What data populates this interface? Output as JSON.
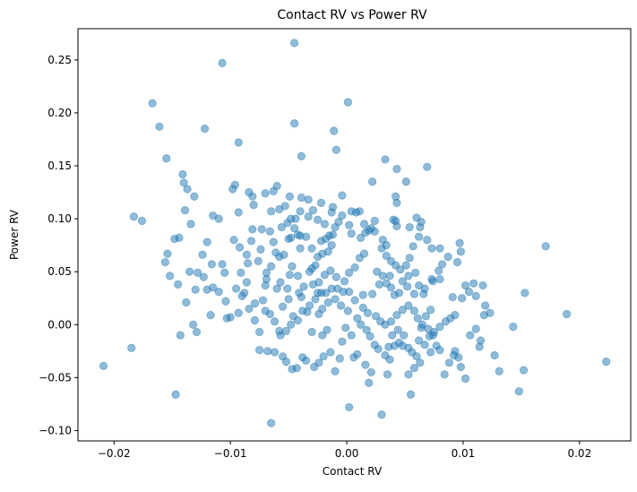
{
  "chart_data": {
    "type": "scatter",
    "title": "Contact RV vs Power RV",
    "xlabel": "Contact RV",
    "ylabel": "Power RV",
    "xlim": [
      -0.0231,
      0.0244
    ],
    "ylim": [
      -0.1098,
      0.2795
    ],
    "xticks": [
      -0.02,
      -0.01,
      0.0,
      0.01,
      0.02
    ],
    "xtick_labels": [
      "−0.02",
      "−0.01",
      "0.00",
      "0.01",
      "0.02"
    ],
    "yticks": [
      -0.1,
      -0.05,
      0.0,
      0.05,
      0.1,
      0.15,
      0.2,
      0.25
    ],
    "ytick_labels": [
      "−0.10",
      "−0.05",
      "0.00",
      "0.05",
      "0.10",
      "0.15",
      "0.20",
      "0.25"
    ],
    "grid": false,
    "legend": false,
    "marker_color": "#1f77b4",
    "marker_alpha": 0.5,
    "points": [
      [
        -0.0045,
        0.266
      ],
      [
        -0.0107,
        0.247
      ],
      [
        0.0001,
        0.21
      ],
      [
        -0.0167,
        0.209
      ],
      [
        -0.0161,
        0.187
      ],
      [
        -0.0045,
        0.19
      ],
      [
        -0.0122,
        0.185
      ],
      [
        -0.0011,
        0.183
      ],
      [
        -0.0009,
        0.165
      ],
      [
        -0.0093,
        0.172
      ],
      [
        -0.0155,
        0.157
      ],
      [
        -0.0039,
        0.159
      ],
      [
        0.0033,
        0.156
      ],
      [
        0.0069,
        0.149
      ],
      [
        0.0043,
        0.147
      ],
      [
        -0.0141,
        0.142
      ],
      [
        -0.014,
        0.134
      ],
      [
        -0.0137,
        0.128
      ],
      [
        -0.0131,
        0.121
      ],
      [
        -0.0096,
        0.132
      ],
      [
        -0.0098,
        0.128
      ],
      [
        -0.0084,
        0.125
      ],
      [
        -0.0081,
        0.121
      ],
      [
        -0.006,
        0.131
      ],
      [
        -0.0063,
        0.126
      ],
      [
        -0.007,
        0.124
      ],
      [
        0.0022,
        0.135
      ],
      [
        0.0051,
        0.135
      ],
      [
        0.0042,
        0.121
      ],
      [
        -0.0049,
        0.121
      ],
      [
        -0.0039,
        0.12
      ],
      [
        -0.0033,
        0.118
      ],
      [
        -0.0004,
        0.122
      ],
      [
        0.0043,
        0.115
      ],
      [
        -0.0022,
        0.115
      ],
      [
        -0.0012,
        0.111
      ],
      [
        0.0004,
        0.107
      ],
      [
        0.0011,
        0.107
      ],
      [
        -0.008,
        0.113
      ],
      [
        -0.0065,
        0.107
      ],
      [
        -0.0053,
        0.112
      ],
      [
        -0.0058,
        0.109
      ],
      [
        -0.0093,
        0.106
      ],
      [
        -0.011,
        0.1
      ],
      [
        -0.0115,
        0.103
      ],
      [
        -0.0139,
        0.108
      ],
      [
        -0.0134,
        0.095
      ],
      [
        -0.0183,
        0.102
      ],
      [
        -0.0176,
        0.098
      ],
      [
        -0.0148,
        0.081
      ],
      [
        -0.0144,
        0.082
      ],
      [
        -0.0154,
        0.067
      ],
      [
        -0.0156,
        0.059
      ],
      [
        -0.0152,
        0.046
      ],
      [
        -0.0145,
        0.038
      ],
      [
        -0.0138,
        0.021
      ],
      [
        -0.013,
        0.033
      ],
      [
        -0.0135,
        0.05
      ],
      [
        -0.0128,
        0.049
      ],
      [
        -0.012,
        0.033
      ],
      [
        -0.0115,
        0.035
      ],
      [
        -0.0105,
        0.049
      ],
      [
        -0.0107,
        0.057
      ],
      [
        -0.0095,
        0.034
      ],
      [
        -0.009,
        0.027
      ],
      [
        -0.0088,
        0.03
      ],
      [
        -0.0086,
        0.04
      ],
      [
        -0.0091,
        0.049
      ],
      [
        -0.0085,
        0.058
      ],
      [
        -0.0086,
        0.066
      ],
      [
        -0.0082,
        0.079
      ],
      [
        -0.0081,
        0.09
      ],
      [
        -0.0073,
        0.09
      ],
      [
        -0.0074,
        0.071
      ],
      [
        -0.0076,
        0.06
      ],
      [
        -0.0069,
        0.049
      ],
      [
        -0.007,
        0.037
      ],
      [
        -0.0072,
        0.023
      ],
      [
        -0.006,
        0.034
      ],
      [
        -0.0057,
        0.04
      ],
      [
        -0.0058,
        0.064
      ],
      [
        -0.0063,
        0.078
      ],
      [
        -0.0066,
        0.088
      ],
      [
        -0.0056,
        0.092
      ],
      [
        -0.005,
        0.081
      ],
      [
        -0.0048,
        0.082
      ],
      [
        -0.0045,
        0.091
      ],
      [
        -0.0044,
        0.1
      ],
      [
        -0.0048,
        0.1
      ],
      [
        -0.0051,
        0.096
      ],
      [
        -0.0054,
        0.066
      ],
      [
        -0.0047,
        0.055
      ],
      [
        -0.0049,
        0.047
      ],
      [
        -0.0042,
        0.046
      ],
      [
        -0.0041,
        0.03
      ],
      [
        -0.0039,
        0.026
      ],
      [
        -0.0037,
        0.036
      ],
      [
        -0.0032,
        0.05
      ],
      [
        -0.003,
        0.053
      ],
      [
        -0.0027,
        0.056
      ],
      [
        -0.0025,
        0.064
      ],
      [
        -0.0021,
        0.067
      ],
      [
        -0.0022,
        0.079
      ],
      [
        -0.0018,
        0.081
      ],
      [
        -0.0015,
        0.084
      ],
      [
        -0.0012,
        0.085
      ],
      [
        -0.001,
        0.092
      ],
      [
        -0.0007,
        0.097
      ],
      [
        -0.0004,
        0.103
      ],
      [
        0.0002,
        0.094
      ],
      [
        0.0004,
        0.086
      ],
      [
        0.0012,
        0.082
      ],
      [
        0.0016,
        0.087
      ],
      [
        0.0019,
        0.089
      ],
      [
        0.0024,
        0.098
      ],
      [
        0.0024,
        0.088
      ],
      [
        0.003,
        0.072
      ],
      [
        0.0034,
        0.065
      ],
      [
        0.0038,
        0.06
      ],
      [
        0.0042,
        0.056
      ],
      [
        0.0046,
        0.052
      ],
      [
        0.0051,
        0.056
      ],
      [
        0.0054,
        0.063
      ],
      [
        0.0057,
        0.074
      ],
      [
        0.0062,
        0.083
      ],
      [
        0.0063,
        0.092
      ],
      [
        0.006,
        0.101
      ],
      [
        0.0064,
        0.097
      ],
      [
        0.0054,
        0.092
      ],
      [
        0.0043,
        0.093
      ],
      [
        0.0042,
        0.098
      ],
      [
        0.004,
        0.099
      ],
      [
        0.0069,
        0.08
      ],
      [
        0.0073,
        0.072
      ],
      [
        0.008,
        0.072
      ],
      [
        0.0087,
        0.064
      ],
      [
        0.0095,
        0.059
      ],
      [
        0.0097,
        0.077
      ],
      [
        0.0098,
        0.069
      ],
      [
        0.0082,
        0.057
      ],
      [
        0.0079,
        0.051
      ],
      [
        0.008,
        0.043
      ],
      [
        0.0073,
        0.043
      ],
      [
        0.0074,
        0.041
      ],
      [
        0.0067,
        0.034
      ],
      [
        0.0062,
        0.037
      ],
      [
        0.0066,
        0.029
      ],
      [
        0.0058,
        0.029
      ],
      [
        0.0052,
        0.036
      ],
      [
        0.0045,
        0.03
      ],
      [
        0.0041,
        0.028
      ],
      [
        0.0038,
        0.035
      ],
      [
        0.0034,
        0.039
      ],
      [
        0.0028,
        0.038
      ],
      [
        0.0022,
        0.029
      ],
      [
        0.0014,
        0.028
      ],
      [
        0.0007,
        0.023
      ],
      [
        0.0002,
        0.031
      ],
      [
        -0.0003,
        0.031
      ],
      [
        -0.0008,
        0.034
      ],
      [
        -0.0013,
        0.034
      ],
      [
        -0.0018,
        0.03
      ],
      [
        -0.0022,
        0.03
      ],
      [
        -0.0027,
        0.024
      ],
      [
        -0.0032,
        0.018
      ],
      [
        -0.0034,
        0.012
      ],
      [
        -0.0038,
        0.013
      ],
      [
        -0.0042,
        0.004
      ],
      [
        -0.0048,
        0.0
      ],
      [
        -0.0052,
        -0.006
      ],
      [
        -0.0058,
        -0.006
      ],
      [
        -0.0062,
        0.003
      ],
      [
        -0.0066,
        0.01
      ],
      [
        -0.007,
        0.013
      ],
      [
        -0.0075,
        -0.024
      ],
      [
        -0.0068,
        -0.025
      ],
      [
        -0.0062,
        -0.026
      ],
      [
        -0.0055,
        -0.03
      ],
      [
        -0.0052,
        -0.035
      ],
      [
        -0.0047,
        -0.042
      ],
      [
        -0.0043,
        -0.041
      ],
      [
        -0.0038,
        -0.031
      ],
      [
        -0.0035,
        -0.034
      ],
      [
        -0.0028,
        -0.04
      ],
      [
        -0.0024,
        -0.036
      ],
      [
        -0.002,
        -0.03
      ],
      [
        -0.0014,
        -0.026
      ],
      [
        -0.001,
        -0.044
      ],
      [
        -0.0004,
        -0.016
      ],
      [
        -0.0001,
        -0.003
      ],
      [
        0.0004,
        -0.01
      ],
      [
        0.0009,
        0.006
      ],
      [
        0.0012,
        0.0
      ],
      [
        0.0017,
        -0.005
      ],
      [
        0.002,
        -0.011
      ],
      [
        0.0024,
        -0.019
      ],
      [
        0.0027,
        -0.023
      ],
      [
        0.0033,
        -0.029
      ],
      [
        0.0036,
        -0.021
      ],
      [
        0.0041,
        -0.02
      ],
      [
        0.0045,
        -0.017
      ],
      [
        0.0048,
        -0.02
      ],
      [
        0.0053,
        -0.022
      ],
      [
        0.0056,
        -0.026
      ],
      [
        0.006,
        -0.03
      ],
      [
        0.0063,
        -0.036
      ],
      [
        0.0067,
        -0.019
      ],
      [
        0.0071,
        -0.011
      ],
      [
        0.0074,
        -0.01
      ],
      [
        0.0077,
        -0.02
      ],
      [
        0.008,
        -0.024
      ],
      [
        0.0084,
        -0.047
      ],
      [
        0.0088,
        -0.036
      ],
      [
        0.0092,
        -0.029
      ],
      [
        0.0096,
        -0.031
      ],
      [
        0.0098,
        -0.04
      ],
      [
        0.0102,
        -0.051
      ],
      [
        0.0106,
        -0.01
      ],
      [
        0.0111,
        -0.004
      ],
      [
        0.0115,
        -0.015
      ],
      [
        0.0119,
        0.018
      ],
      [
        0.0123,
        0.011
      ],
      [
        0.0111,
        0.027
      ],
      [
        0.0105,
        0.031
      ],
      [
        0.0099,
        0.025
      ],
      [
        0.0091,
        0.026
      ],
      [
        0.0102,
        0.037
      ],
      [
        0.0109,
        0.039
      ],
      [
        0.0117,
        0.037
      ],
      [
        0.0131,
        -0.044
      ],
      [
        0.0143,
        -0.002
      ],
      [
        0.0148,
        -0.063
      ],
      [
        0.0152,
        -0.043
      ],
      [
        0.0153,
        0.03
      ],
      [
        0.0171,
        0.074
      ],
      [
        0.0189,
        0.01
      ],
      [
        0.0223,
        -0.035
      ],
      [
        -0.0209,
        -0.039
      ],
      [
        -0.0185,
        -0.022
      ],
      [
        -0.0143,
        -0.01
      ],
      [
        -0.0147,
        -0.066
      ],
      [
        -0.0132,
        0.0
      ],
      [
        -0.0129,
        -0.007
      ],
      [
        -0.0117,
        0.009
      ],
      [
        -0.0103,
        0.006
      ],
      [
        -0.01,
        0.007
      ],
      [
        -0.0093,
        0.011
      ],
      [
        -0.0084,
        0.015
      ],
      [
        -0.0079,
        0.02
      ],
      [
        -0.0065,
        -0.093
      ],
      [
        -0.0057,
        -0.01
      ],
      [
        -0.0046,
        0.008
      ],
      [
        -0.003,
        -0.007
      ],
      [
        -0.0021,
        -0.01
      ],
      [
        -0.0017,
        -0.005
      ],
      [
        -0.0006,
        -0.032
      ],
      [
        0.0002,
        -0.078
      ],
      [
        0.0009,
        -0.028
      ],
      [
        0.0019,
        -0.055
      ],
      [
        0.0021,
        -0.045
      ],
      [
        0.003,
        -0.085
      ],
      [
        0.0035,
        -0.047
      ],
      [
        0.0039,
        -0.01
      ],
      [
        0.0044,
        -0.005
      ],
      [
        0.0049,
        -0.01
      ],
      [
        0.0055,
        -0.066
      ],
      [
        0.0058,
        -0.041
      ],
      [
        0.0062,
        -0.015
      ],
      [
        0.0064,
        -0.003
      ],
      [
        0.0068,
        0.008
      ],
      [
        0.0072,
        0.014
      ],
      [
        -0.0013,
        0.075
      ],
      [
        -0.0016,
        0.069
      ],
      [
        -0.003,
        0.072
      ],
      [
        -0.0035,
        0.083
      ],
      [
        -0.004,
        0.084
      ],
      [
        -0.0042,
        0.085
      ],
      [
        -0.0033,
        0.102
      ],
      [
        -0.0025,
        0.099
      ],
      [
        -0.0019,
        0.095
      ],
      [
        -0.0013,
        0.106
      ],
      [
        0.0008,
        0.106
      ],
      [
        0.0015,
        0.095
      ],
      [
        0.0021,
        0.091
      ],
      [
        0.0031,
        0.08
      ],
      [
        0.0034,
        0.075
      ],
      [
        0.0015,
        0.067
      ],
      [
        0.0011,
        0.063
      ],
      [
        0.0007,
        0.054
      ],
      [
        0.0002,
        0.049
      ],
      [
        -0.0002,
        0.041
      ],
      [
        -0.0009,
        0.045
      ],
      [
        -0.0014,
        0.051
      ],
      [
        -0.0019,
        0.047
      ],
      [
        -0.0024,
        0.04
      ],
      [
        -0.0029,
        0.038
      ],
      [
        0.0026,
        0.05
      ],
      [
        0.0031,
        0.046
      ],
      [
        0.0037,
        0.046
      ],
      [
        0.0048,
        0.041
      ],
      [
        0.0053,
        0.046
      ],
      [
        0.0059,
        0.049
      ],
      [
        0.0014,
        0.016
      ],
      [
        0.0018,
        0.011
      ],
      [
        0.0025,
        0.008
      ],
      [
        0.0029,
        0.003
      ],
      [
        0.0033,
        0.0
      ],
      [
        0.0038,
        0.003
      ],
      [
        0.0043,
        0.009
      ],
      [
        0.0048,
        0.014
      ],
      [
        0.0053,
        0.018
      ],
      [
        0.0058,
        0.013
      ],
      [
        0.0061,
        0.006
      ],
      [
        0.0065,
        0.0
      ],
      [
        0.007,
        -0.004
      ],
      [
        0.0075,
        -0.007
      ],
      [
        0.008,
        -0.002
      ],
      [
        0.0085,
        0.003
      ],
      [
        0.0089,
        0.006
      ],
      [
        0.0093,
        0.009
      ],
      [
        -0.0024,
        0.01
      ],
      [
        -0.0021,
        0.015
      ],
      [
        -0.0016,
        0.021
      ],
      [
        -0.001,
        0.024
      ],
      [
        -0.0005,
        0.018
      ],
      [
        0.0001,
        0.013
      ],
      [
        -0.004,
        0.072
      ],
      [
        -0.0061,
        0.068
      ],
      [
        -0.0065,
        0.055
      ],
      [
        -0.0069,
        0.043
      ],
      [
        -0.0097,
        0.08
      ],
      [
        -0.0092,
        0.073
      ],
      [
        -0.012,
        0.078
      ],
      [
        -0.0124,
        0.066
      ],
      [
        -0.0116,
        0.057
      ],
      [
        -0.0123,
        0.045
      ],
      [
        -0.011,
        0.031
      ],
      [
        -0.0104,
        0.022
      ],
      [
        -0.0079,
        0.004
      ],
      [
        -0.0075,
        -0.007
      ],
      [
        -0.0055,
        0.017
      ],
      [
        -0.005,
        0.024
      ],
      [
        -0.0051,
        0.034
      ],
      [
        -0.0029,
        0.108
      ],
      [
        -0.004,
        0.107
      ],
      [
        -0.0025,
        0.03
      ],
      [
        0.0006,
        -0.031
      ],
      [
        0.0016,
        -0.038
      ],
      [
        0.0037,
        -0.033
      ],
      [
        0.0053,
        -0.047
      ],
      [
        0.0072,
        -0.026
      ],
      [
        0.0093,
        -0.025
      ],
      [
        0.0114,
        -0.021
      ],
      [
        0.0127,
        -0.029
      ],
      [
        0.0118,
        0.009
      ]
    ]
  }
}
